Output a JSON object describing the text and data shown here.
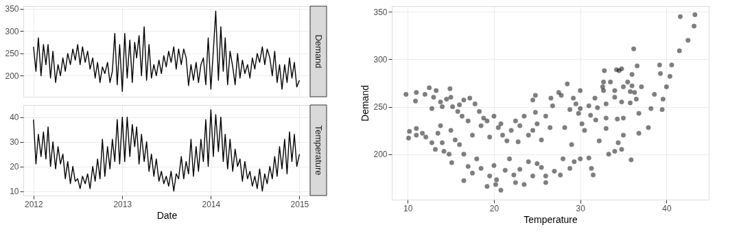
{
  "chart_data": [
    {
      "type": "line",
      "x": [
        "2012-01-01",
        "2012-01-11",
        "2012-01-21",
        "2012-02-01",
        "2012-02-11",
        "2012-02-21",
        "2012-03-01",
        "2012-03-11",
        "2012-03-21",
        "2012-04-01",
        "2012-04-11",
        "2012-04-21",
        "2012-05-01",
        "2012-05-11",
        "2012-05-21",
        "2012-06-01",
        "2012-06-11",
        "2012-06-21",
        "2012-07-01",
        "2012-07-11",
        "2012-07-21",
        "2012-08-01",
        "2012-08-11",
        "2012-08-21",
        "2012-09-01",
        "2012-09-11",
        "2012-09-21",
        "2012-10-01",
        "2012-10-11",
        "2012-10-21",
        "2012-11-01",
        "2012-11-11",
        "2012-11-21",
        "2012-12-01",
        "2012-12-11",
        "2012-12-21",
        "2013-01-01",
        "2013-01-11",
        "2013-01-21",
        "2013-02-01",
        "2013-02-11",
        "2013-02-21",
        "2013-03-01",
        "2013-03-11",
        "2013-03-21",
        "2013-04-01",
        "2013-04-11",
        "2013-04-21",
        "2013-05-01",
        "2013-05-11",
        "2013-05-21",
        "2013-06-01",
        "2013-06-11",
        "2013-06-21",
        "2013-07-01",
        "2013-07-11",
        "2013-07-21",
        "2013-08-01",
        "2013-08-11",
        "2013-08-21",
        "2013-09-01",
        "2013-09-11",
        "2013-09-21",
        "2013-10-01",
        "2013-10-11",
        "2013-10-21",
        "2013-11-01",
        "2013-11-11",
        "2013-11-21",
        "2013-12-01",
        "2013-12-11",
        "2013-12-21",
        "2014-01-01",
        "2014-01-11",
        "2014-01-21",
        "2014-02-01",
        "2014-02-11",
        "2014-02-21",
        "2014-03-01",
        "2014-03-11",
        "2014-03-21",
        "2014-04-01",
        "2014-04-11",
        "2014-04-21",
        "2014-05-01",
        "2014-05-11",
        "2014-05-21",
        "2014-06-01",
        "2014-06-11",
        "2014-06-21",
        "2014-07-01",
        "2014-07-11",
        "2014-07-21",
        "2014-08-01",
        "2014-08-11",
        "2014-08-21",
        "2014-09-01",
        "2014-09-11",
        "2014-09-21",
        "2014-10-01",
        "2014-10-11",
        "2014-10-21",
        "2014-11-01",
        "2014-11-11",
        "2014-11-21",
        "2014-12-01",
        "2014-12-11",
        "2014-12-21",
        "2015-01-01"
      ],
      "series": [
        {
          "name": "Demand",
          "color": "#000000",
          "values": [
            265,
            210,
            285,
            200,
            270,
            225,
            270,
            195,
            255,
            185,
            225,
            200,
            240,
            210,
            250,
            225,
            260,
            235,
            270,
            225,
            265,
            230,
            255,
            215,
            240,
            195,
            230,
            185,
            220,
            205,
            230,
            185,
            210,
            295,
            180,
            270,
            165,
            295,
            195,
            280,
            185,
            275,
            240,
            290,
            200,
            310,
            190,
            270,
            195,
            225,
            200,
            235,
            205,
            245,
            220,
            255,
            230,
            265,
            215,
            260,
            225,
            260,
            240,
            178,
            225,
            190,
            230,
            185,
            225,
            240,
            180,
            285,
            170,
            255,
            345,
            190,
            310,
            210,
            285,
            180,
            255,
            220,
            180,
            250,
            195,
            235,
            205,
            225,
            195,
            240,
            215,
            250,
            230,
            265,
            225,
            260,
            240,
            200,
            255,
            185,
            225,
            170,
            225,
            185,
            240,
            195,
            230,
            175,
            190
          ]
        }
      ],
      "xlim": [
        "2011-11-20",
        "2015-02-14"
      ],
      "xticks": [
        "2012",
        "2013",
        "2014",
        "2015"
      ],
      "ylim": [
        153,
        356
      ],
      "yticks": [
        200,
        250,
        300,
        350
      ],
      "grid": true,
      "tick_labels": "y"
    },
    {
      "type": "line",
      "x": [
        "2012-01-01",
        "2012-01-11",
        "2012-01-21",
        "2012-02-01",
        "2012-02-11",
        "2012-02-21",
        "2012-03-01",
        "2012-03-11",
        "2012-03-21",
        "2012-04-01",
        "2012-04-11",
        "2012-04-21",
        "2012-05-01",
        "2012-05-11",
        "2012-05-21",
        "2012-06-01",
        "2012-06-11",
        "2012-06-21",
        "2012-07-01",
        "2012-07-11",
        "2012-07-21",
        "2012-08-01",
        "2012-08-11",
        "2012-08-21",
        "2012-09-01",
        "2012-09-11",
        "2012-09-21",
        "2012-10-01",
        "2012-10-11",
        "2012-10-21",
        "2012-11-01",
        "2012-11-11",
        "2012-11-21",
        "2012-12-01",
        "2012-12-11",
        "2012-12-21",
        "2013-01-01",
        "2013-01-11",
        "2013-01-21",
        "2013-02-01",
        "2013-02-11",
        "2013-02-21",
        "2013-03-01",
        "2013-03-11",
        "2013-03-21",
        "2013-04-01",
        "2013-04-11",
        "2013-04-21",
        "2013-05-01",
        "2013-05-11",
        "2013-05-21",
        "2013-06-01",
        "2013-06-11",
        "2013-06-21",
        "2013-07-01",
        "2013-07-11",
        "2013-07-21",
        "2013-08-01",
        "2013-08-11",
        "2013-08-21",
        "2013-09-01",
        "2013-09-11",
        "2013-09-21",
        "2013-10-01",
        "2013-10-11",
        "2013-10-21",
        "2013-11-01",
        "2013-11-11",
        "2013-11-21",
        "2013-12-01",
        "2013-12-11",
        "2013-12-21",
        "2014-01-01",
        "2014-01-11",
        "2014-01-21",
        "2014-02-01",
        "2014-02-11",
        "2014-02-21",
        "2014-03-01",
        "2014-03-11",
        "2014-03-21",
        "2014-04-01",
        "2014-04-11",
        "2014-04-21",
        "2014-05-01",
        "2014-05-11",
        "2014-05-21",
        "2014-06-01",
        "2014-06-11",
        "2014-06-21",
        "2014-07-01",
        "2014-07-11",
        "2014-07-21",
        "2014-08-01",
        "2014-08-11",
        "2014-08-21",
        "2014-09-01",
        "2014-09-11",
        "2014-09-21",
        "2014-10-01",
        "2014-10-11",
        "2014-10-21",
        "2014-11-01",
        "2014-11-11",
        "2014-11-21",
        "2014-12-01",
        "2014-12-11",
        "2014-12-21",
        "2015-01-01"
      ],
      "series": [
        {
          "name": "Temperature",
          "color": "#000000",
          "values": [
            39,
            21,
            33,
            24,
            34,
            23,
            36,
            20,
            30,
            19,
            28,
            21,
            25,
            15,
            22,
            13,
            20,
            14,
            15,
            11,
            16,
            13,
            17,
            11,
            20,
            14,
            23,
            15,
            31,
            16,
            28,
            19,
            31,
            22,
            39,
            21,
            40,
            22,
            40,
            24,
            37,
            28,
            36,
            21,
            33,
            22,
            30,
            18,
            25,
            16,
            23,
            14,
            18,
            13,
            16,
            12,
            18,
            10,
            17,
            15,
            24,
            15,
            22,
            17,
            31,
            16,
            28,
            18,
            31,
            22,
            39,
            20,
            43,
            24,
            41,
            26,
            40,
            22,
            33,
            19,
            31,
            18,
            27,
            20,
            23,
            14,
            22,
            15,
            18,
            12,
            16,
            11,
            19,
            10,
            17,
            13,
            20,
            15,
            24,
            16,
            28,
            19,
            31,
            17,
            34,
            22,
            33,
            20,
            25
          ]
        }
      ],
      "xlabel": "Date",
      "xlim": [
        "2011-11-20",
        "2015-02-14"
      ],
      "xticks": [
        "2012",
        "2013",
        "2014",
        "2015"
      ],
      "ylim": [
        8.2,
        44.9
      ],
      "yticks": [
        10,
        20,
        30,
        40
      ],
      "grid": true
    },
    {
      "type": "scatter",
      "xlabel": "Temperature",
      "ylabel": "Demand",
      "xlim": [
        8.15,
        44.9
      ],
      "xticks": [
        10,
        20,
        30,
        40
      ],
      "ylim": [
        152,
        356
      ],
      "yticks": [
        200,
        250,
        300,
        350
      ],
      "grid": true,
      "series": [
        {
          "color": "#000000",
          "x": [
            9.8,
            11,
            10.9,
            12,
            12.5,
            13,
            13.3,
            13.8,
            14.5,
            14.9,
            15.2,
            15.8,
            16.3,
            16.5,
            17.2,
            17.8,
            18.3,
            18.8,
            14,
            15,
            16,
            12.8,
            17,
            10.2,
            10.1,
            11,
            11,
            11.7,
            12.1,
            12.8,
            13.2,
            13.5,
            14,
            14.2,
            14.8,
            15.1,
            15.5,
            16,
            16.5,
            13.8,
            15,
            17.5,
            18.5,
            19.2,
            20,
            20.5,
            21,
            21.5,
            22,
            22.5,
            23,
            23.5,
            24,
            24.5,
            25,
            25.5,
            26,
            20.8,
            19.5,
            22.8,
            24.8,
            26.5,
            16.5,
            17,
            17.5,
            18,
            18.5,
            19.2,
            19.5,
            20,
            20.2,
            20.3,
            20.8,
            21.3,
            21.8,
            22.3,
            22.5,
            23,
            23.5,
            24,
            24.5,
            25,
            25.5,
            26,
            26,
            27,
            27.7,
            28,
            28.8,
            29.3,
            24.5,
            24.8,
            26.6,
            26.8,
            27.5,
            27.8,
            28.5,
            28.8,
            29.2,
            29.5,
            30,
            30,
            30.2,
            30.5,
            31,
            31.2,
            31.7,
            31.8,
            32,
            32.2,
            32.6,
            32.7,
            32.7,
            32.8,
            33,
            33,
            33,
            33.5,
            33.3,
            34,
            34,
            34,
            34.2,
            34.3,
            34.4,
            34.5,
            34.8,
            34.8,
            34.8,
            35,
            35,
            35,
            35.5,
            35.8,
            35.8,
            35.9,
            36,
            36,
            36.2,
            36.3,
            36.5,
            36.6,
            36.8,
            36.8,
            37.1,
            37.9,
            38.2,
            38.6,
            39.2,
            39.3,
            39.5,
            39.6,
            40,
            40.4,
            40.6,
            41.5,
            41.6,
            42.5,
            43.2,
            43.3,
            30,
            31,
            31.3,
            31.5,
            29,
            28.2,
            29.8
          ],
          "values": [
            263,
            265,
            256,
            263,
            270,
            260,
            267,
            255,
            258,
            269,
            250,
            245,
            240,
            257,
            259,
            253,
            245,
            238,
            250,
            260,
            252,
            248,
            235,
            224,
            217,
            227,
            220,
            222,
            218,
            212,
            205,
            222,
            212,
            203,
            200,
            191,
            215,
            210,
            200,
            230,
            225,
            220,
            230,
            235,
            240,
            228,
            220,
            214,
            225,
            235,
            230,
            240,
            220,
            225,
            232,
            215,
            240,
            232,
            218,
            213,
            244,
            228,
            172,
            187,
            180,
            195,
            185,
            166,
            177,
            188,
            168,
            173,
            162,
            183,
            195,
            178,
            170,
            184,
            168,
            192,
            177,
            190,
            186,
            177,
            170,
            182,
            178,
            195,
            185,
            192,
            257,
            262,
            259,
            251,
            265,
            262,
            274,
            247,
            259,
            253,
            267,
            248,
            232,
            225,
            251,
            241,
            259,
            236,
            249,
            214,
            271,
            267,
            276,
            288,
            253,
            238,
            227,
            276,
            200,
            203,
            267,
            260,
            289,
            237,
            212,
            288,
            290,
            255,
            205,
            271,
            238,
            220,
            276,
            266,
            254,
            194,
            284,
            272,
            311,
            265,
            258,
            293,
            243,
            222,
            271,
            228,
            248,
            263,
            294,
            285,
            247,
            258,
            271,
            282,
            294,
            309,
            345,
            320,
            335,
            347,
            195,
            196,
            185,
            178,
            210,
            228,
            243
          ]
        }
      ]
    }
  ]
}
